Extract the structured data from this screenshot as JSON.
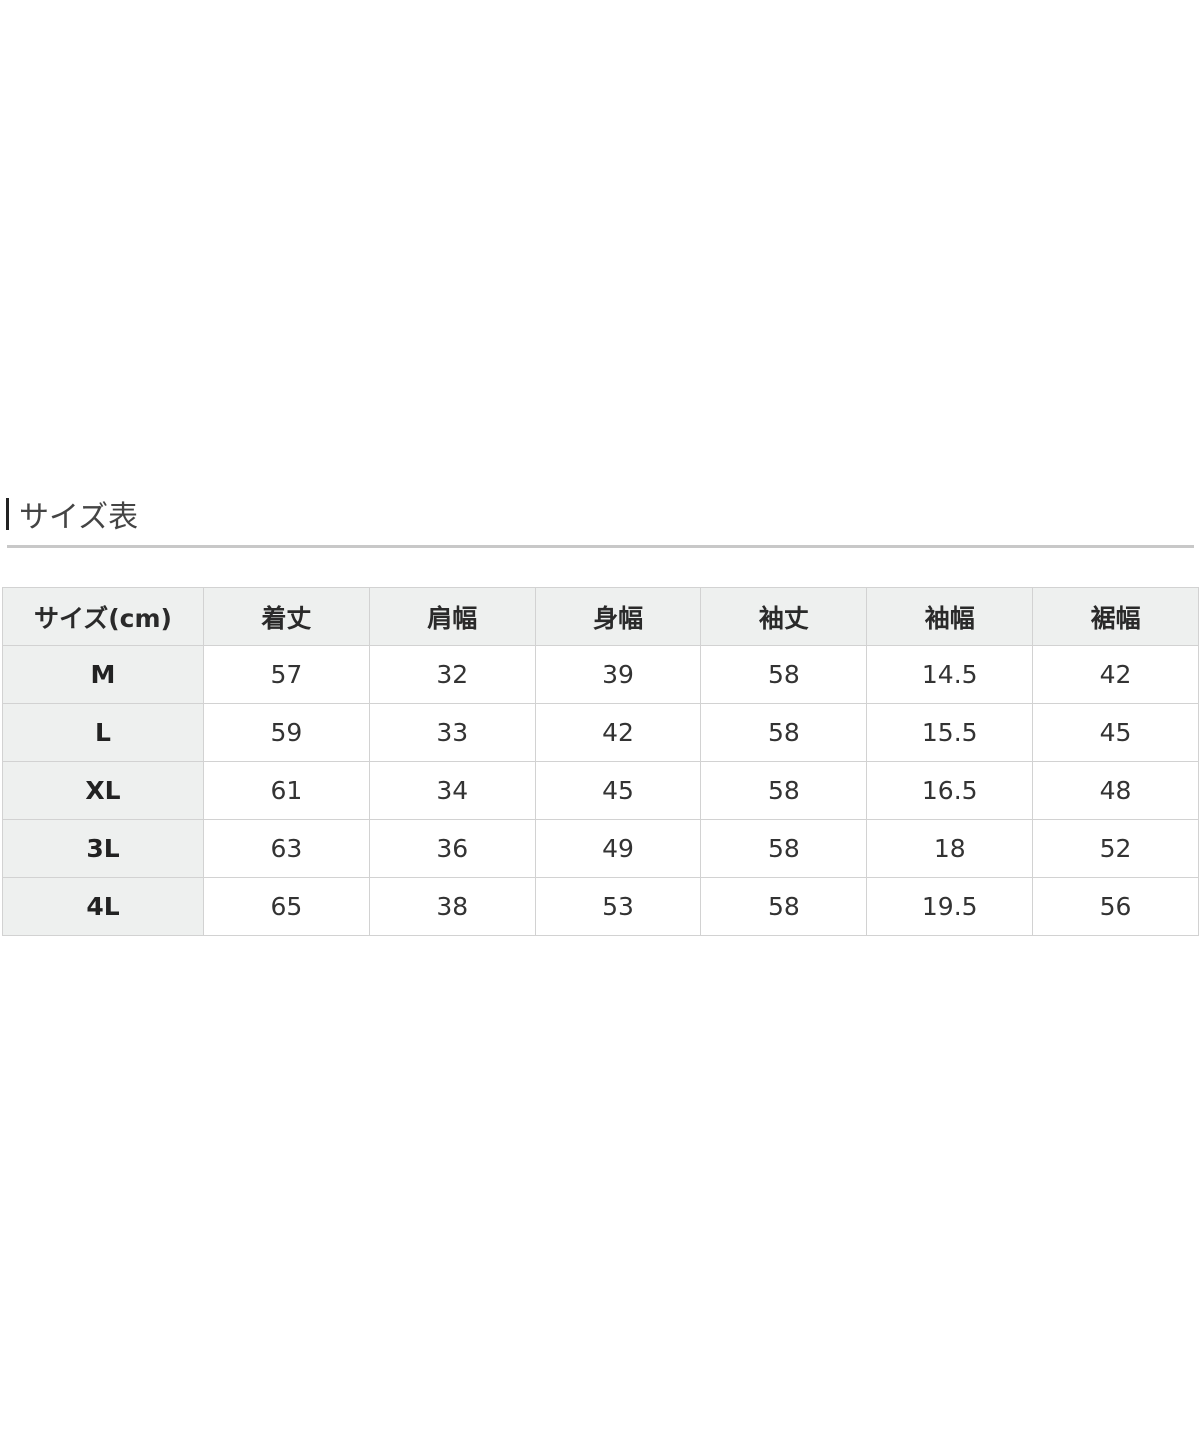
{
  "title": "サイズ表",
  "table": {
    "headers": [
      "サイズ(cm)",
      "着丈",
      "肩幅",
      "身幅",
      "袖丈",
      "袖幅",
      "裾幅"
    ],
    "rows": [
      [
        "M",
        "57",
        "32",
        "39",
        "58",
        "14.5",
        "42"
      ],
      [
        "L",
        "59",
        "33",
        "42",
        "58",
        "15.5",
        "45"
      ],
      [
        "XL",
        "61",
        "34",
        "45",
        "58",
        "16.5",
        "48"
      ],
      [
        "3L",
        "63",
        "36",
        "49",
        "58",
        "18",
        "52"
      ],
      [
        "4L",
        "65",
        "38",
        "53",
        "58",
        "19.5",
        "56"
      ]
    ]
  }
}
